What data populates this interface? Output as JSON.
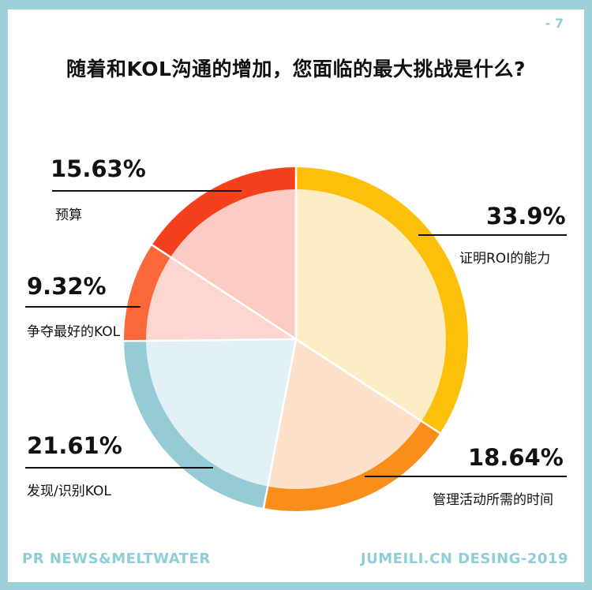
{
  "page_number": "- 7",
  "title": "随着和KOL沟通的增加，您面临的最大挑战是什么?",
  "footer_left": "PR NEWS&MELTWATER",
  "footer_right": "JUMEILI.CN DESING-2019",
  "colors": {
    "frame": "#9dd0d9",
    "roi_outer": "#fcc00a",
    "roi_inner": "#fdedc4",
    "manage_outer": "#f98e1a",
    "manage_inner": "#fde1cb",
    "discover_outer": "#94cbd5",
    "discover_inner": "#e1f1f6",
    "compete_outer": "#fa6738",
    "compete_inner": "#fdd6cf",
    "budget_outer": "#f4401c",
    "budget_inner": "#fccbc4"
  },
  "chart_data": {
    "type": "pie",
    "title": "随着和KOL沟通的增加，您面临的最大挑战是什么?",
    "start": "12 o'clock, clockwise",
    "slices": [
      {
        "label": "证明ROI的能力",
        "value": 33.9,
        "display": "33.9%"
      },
      {
        "label": "管理活动所需的时间",
        "value": 18.64,
        "display": "18.64%"
      },
      {
        "label": "发现/识别KOL",
        "value": 21.61,
        "display": "21.61%"
      },
      {
        "label": "争夺最好的KOL",
        "value": 9.32,
        "display": "9.32%"
      },
      {
        "label": "预算",
        "value": 15.63,
        "display": "15.63%"
      }
    ]
  }
}
